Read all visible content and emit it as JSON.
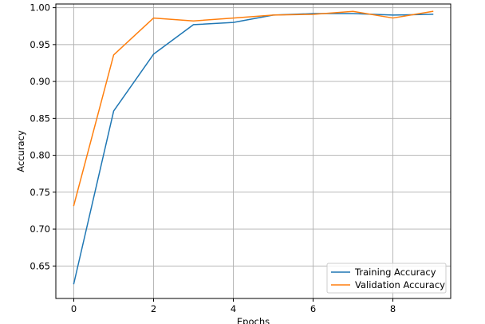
{
  "chart_data": {
    "type": "line",
    "xlabel": "Epochs",
    "ylabel": "Accuracy",
    "x": [
      0,
      1,
      2,
      3,
      4,
      5,
      6,
      7,
      8,
      9
    ],
    "xlim": [
      -0.45,
      9.45
    ],
    "ylim": [
      0.606,
      1.005
    ],
    "xticks": [
      0,
      2,
      4,
      6,
      8
    ],
    "xtick_labels": [
      "0",
      "2",
      "4",
      "6",
      "8"
    ],
    "yticks": [
      0.65,
      0.7,
      0.75,
      0.8,
      0.85,
      0.9,
      0.95,
      1.0
    ],
    "ytick_labels": [
      "0.65",
      "0.70",
      "0.75",
      "0.80",
      "0.85",
      "0.90",
      "0.95",
      "1.00"
    ],
    "grid": true,
    "legend_position": "bottom-right",
    "series": [
      {
        "name": "Training Accuracy",
        "color": "#1f77b4",
        "values": [
          0.626,
          0.86,
          0.937,
          0.977,
          0.98,
          0.99,
          0.992,
          0.992,
          0.99,
          0.991
        ]
      },
      {
        "name": "Validation Accuracy",
        "color": "#ff7f0e",
        "values": [
          0.732,
          0.936,
          0.986,
          0.982,
          0.986,
          0.99,
          0.991,
          0.995,
          0.986,
          0.995
        ]
      }
    ]
  }
}
